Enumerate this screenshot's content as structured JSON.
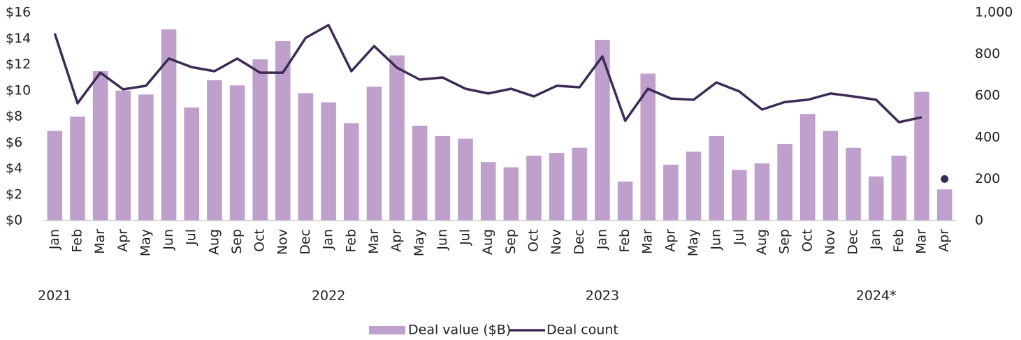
{
  "chart_data": {
    "type": "bar_line",
    "categories": [
      "Jan",
      "Feb",
      "Mar",
      "Apr",
      "May",
      "Jun",
      "Jul",
      "Aug",
      "Sep",
      "Oct",
      "Nov",
      "Dec",
      "Jan",
      "Feb",
      "Mar",
      "Apr",
      "May",
      "Jun",
      "Jul",
      "Aug",
      "Sep",
      "Oct",
      "Nov",
      "Dec",
      "Jan",
      "Feb",
      "Mar",
      "Apr",
      "May",
      "Jun",
      "Jul",
      "Aug",
      "Sep",
      "Oct",
      "Nov",
      "Dec",
      "Jan",
      "Feb",
      "Mar",
      "Apr"
    ],
    "groups": [
      {
        "label": "2021",
        "index": 0
      },
      {
        "label": "2022",
        "index": 12
      },
      {
        "label": "2023",
        "index": 24
      },
      {
        "label": "2024*",
        "index": 36
      }
    ],
    "series": [
      {
        "name": "Deal value ($B)",
        "type": "bar",
        "color": "#bf9fcb",
        "values": [
          6.9,
          8.0,
          11.5,
          10.0,
          9.7,
          14.7,
          8.7,
          10.8,
          10.4,
          12.4,
          13.8,
          9.8,
          9.1,
          7.5,
          10.3,
          12.7,
          7.3,
          6.5,
          6.3,
          4.5,
          4.1,
          5.0,
          5.2,
          5.6,
          13.9,
          3.0,
          11.3,
          4.3,
          5.3,
          6.5,
          3.9,
          4.4,
          5.9,
          8.2,
          6.9,
          5.6,
          3.4,
          5.0,
          9.9,
          2.4
        ]
      },
      {
        "name": "Deal count",
        "type": "line",
        "axis": "y2",
        "color": "#3b2b55",
        "last_point_marker": true,
        "values": [
          900,
          564,
          711,
          631,
          648,
          779,
          738,
          718,
          779,
          711,
          711,
          879,
          940,
          718,
          839,
          735,
          678,
          688,
          634,
          611,
          634,
          597,
          648,
          641,
          789,
          480,
          634,
          587,
          581,
          664,
          621,
          534,
          570,
          581,
          611,
          597,
          581,
          473,
          497,
          200
        ]
      }
    ],
    "ylim": [
      0,
      16
    ],
    "yticks": [
      {
        "value": 0,
        "label": "$0"
      },
      {
        "value": 2,
        "label": "$2"
      },
      {
        "value": 4,
        "label": "$4"
      },
      {
        "value": 6,
        "label": "$6"
      },
      {
        "value": 8,
        "label": "$8"
      },
      {
        "value": 10,
        "label": "$10"
      },
      {
        "value": 12,
        "label": "$12"
      },
      {
        "value": 14,
        "label": "$14"
      },
      {
        "value": 16,
        "label": "$16"
      }
    ],
    "y2lim": [
      0,
      1000
    ],
    "y2ticks": [
      0,
      200,
      400,
      600,
      800,
      {
        "value": 1000,
        "label": "1,000"
      }
    ],
    "grid": false,
    "legend": "bottom"
  }
}
